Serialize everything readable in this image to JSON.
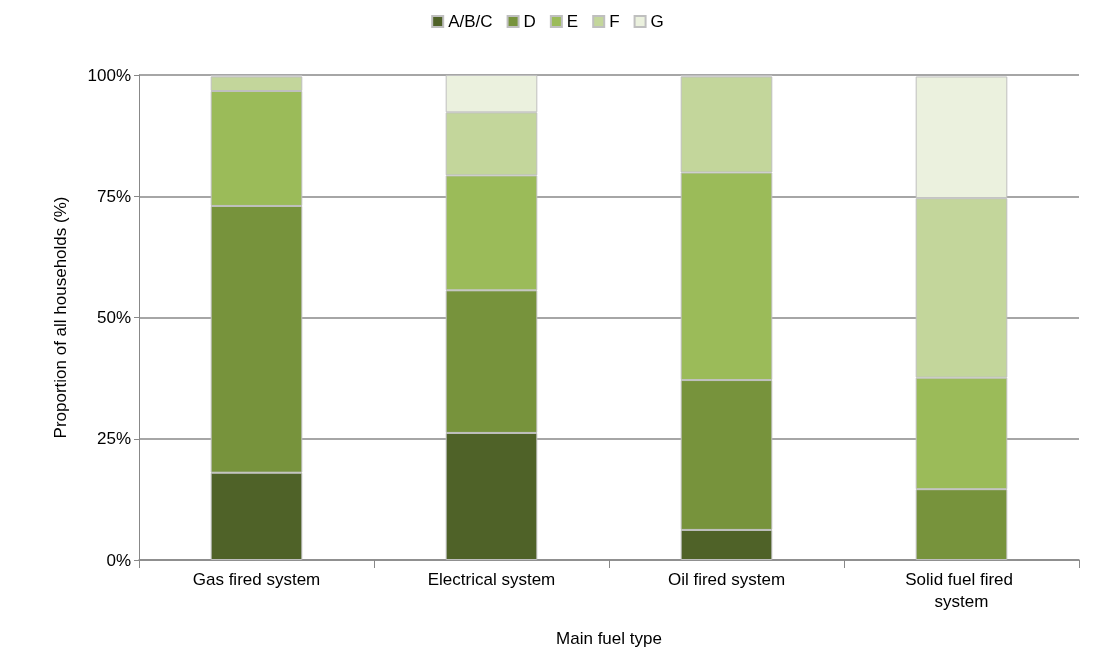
{
  "chart_data": {
    "type": "bar",
    "stacked": true,
    "xlabel": "Main fuel type",
    "ylabel": "Proportion of all households (%)",
    "categories": [
      "Gas fired system",
      "Electrical system",
      "Oil fired system",
      "Solid fuel fired system"
    ],
    "series": [
      {
        "name": "A/B/C",
        "color": "#4f6228",
        "values": [
          18,
          26.2,
          6.2,
          null
        ]
      },
      {
        "name": "D",
        "color": "#77933c",
        "values": [
          55,
          29.4,
          30.9,
          14.6
        ]
      },
      {
        "name": "E",
        "color": "#9bbb59",
        "values": [
          23.7,
          23.7,
          42.8,
          23
        ]
      },
      {
        "name": "F",
        "color": "#c3d69b",
        "values": [
          3,
          13,
          19.8,
          37
        ]
      },
      {
        "name": "G",
        "color": "#ebf1de",
        "values": [
          0.3,
          7.7,
          0.3,
          25.1
        ]
      }
    ],
    "ylim": [
      0,
      100
    ],
    "yticks": [
      {
        "value": 0,
        "label": "0%"
      },
      {
        "value": 25,
        "label": "25%"
      },
      {
        "value": 50,
        "label": "50%"
      },
      {
        "value": 75,
        "label": "75%"
      },
      {
        "value": 100,
        "label": "100%"
      }
    ],
    "grid": "y",
    "legend": "top"
  }
}
